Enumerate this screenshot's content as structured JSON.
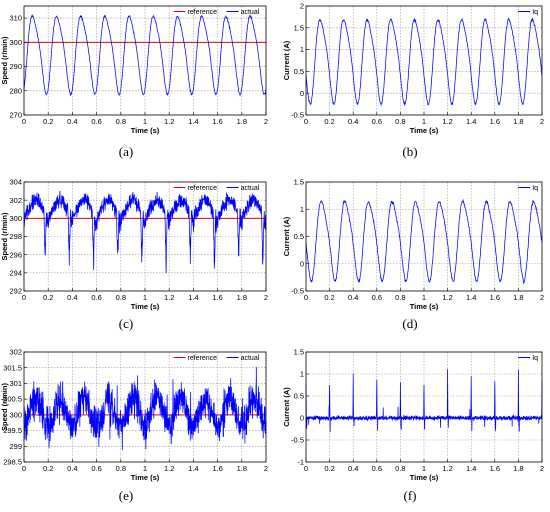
{
  "chart_data": [
    {
      "type": "line",
      "caption": "(a)",
      "xlabel": "Time (s)",
      "ylabel": "Speed (r/min)",
      "xlim": [
        0,
        2
      ],
      "ylim": [
        270,
        315
      ],
      "xticks": [
        0,
        0.2,
        0.4,
        0.6,
        0.8,
        1,
        1.2,
        1.4,
        1.6,
        1.8,
        2
      ],
      "xtick_labels": [
        "0",
        "0.2",
        "0.4",
        "0.6",
        "0.8",
        "1",
        "1.2",
        "1.4",
        "1.6",
        "1.8",
        "2"
      ],
      "yticks": [
        270,
        280,
        290,
        300,
        310
      ],
      "ytick_labels": [
        "270",
        "280",
        "290",
        "300",
        "310"
      ],
      "grid": true,
      "legend_position": "top-right",
      "series": [
        {
          "name": "reference",
          "color": "#e00000",
          "waveform": "constant",
          "value": 300
        },
        {
          "name": "actual",
          "color": "#0000ff",
          "waveform": "periodic",
          "period_s": 0.2,
          "phase_s": 0.03,
          "mean": 296,
          "amplitude": 17,
          "noise": 0.5
        }
      ]
    },
    {
      "type": "line",
      "caption": "(b)",
      "xlabel": "Time (s)",
      "ylabel": "Current (A)",
      "xlim": [
        0,
        2
      ],
      "ylim": [
        -0.5,
        2
      ],
      "xticks": [
        0,
        0.2,
        0.4,
        0.6,
        0.8,
        1,
        1.2,
        1.4,
        1.6,
        1.8,
        2
      ],
      "xtick_labels": [
        "0",
        "0.2",
        "0.4",
        "0.6",
        "0.8",
        "1",
        "1.2",
        "1.4",
        "1.6",
        "1.8",
        "2"
      ],
      "yticks": [
        -0.5,
        0,
        0.5,
        1,
        1.5,
        2
      ],
      "ytick_labels": [
        "-0.5",
        "0",
        "0.5",
        "1",
        "1.5",
        "2"
      ],
      "grid": true,
      "legend_position": "top-right",
      "series": [
        {
          "name": "Iq",
          "color": "#0000ff",
          "waveform": "periodic",
          "period_s": 0.2,
          "phase_s": 0.08,
          "mean": 0.8,
          "amplitude": 1.02,
          "noise": 0.03
        }
      ]
    },
    {
      "type": "line",
      "caption": "(c)",
      "xlabel": "Time (s)",
      "ylabel": "Speed (r/min)",
      "xlim": [
        0,
        2
      ],
      "ylim": [
        292,
        304
      ],
      "xticks": [
        0,
        0.2,
        0.4,
        0.6,
        0.8,
        1,
        1.2,
        1.4,
        1.6,
        1.8,
        2
      ],
      "xtick_labels": [
        "0",
        "0.2",
        "0.4",
        "0.6",
        "0.8",
        "1",
        "1.2",
        "1.4",
        "1.6",
        "1.8",
        "2"
      ],
      "yticks": [
        292,
        294,
        296,
        298,
        300,
        302,
        304
      ],
      "ytick_labels": [
        "292",
        "294",
        "296",
        "298",
        "300",
        "302",
        "304"
      ],
      "grid": true,
      "legend_position": "top-right",
      "series": [
        {
          "name": "reference",
          "color": "#e00000",
          "waveform": "constant",
          "value": 300
        },
        {
          "name": "actual",
          "color": "#0000ff",
          "waveform": "spiky",
          "period_s": 0.2,
          "phase_s": 0.05,
          "mean": 301.2,
          "amplitude": 1.4,
          "noise": 0.8,
          "spike_depth": 7
        }
      ]
    },
    {
      "type": "line",
      "caption": "(d)",
      "xlabel": "Time (s)",
      "ylabel": "Current (A)",
      "xlim": [
        0,
        2
      ],
      "ylim": [
        -0.5,
        1.5
      ],
      "xticks": [
        0,
        0.2,
        0.4,
        0.6,
        0.8,
        1,
        1.2,
        1.4,
        1.6,
        1.8,
        2
      ],
      "xtick_labels": [
        "0",
        "0.2",
        "0.4",
        "0.6",
        "0.8",
        "1",
        "1.2",
        "1.4",
        "1.6",
        "1.8",
        "2"
      ],
      "yticks": [
        -0.5,
        0,
        0.5,
        1,
        1.5
      ],
      "ytick_labels": [
        "-0.5",
        "0",
        "0.5",
        "1",
        "1.5"
      ],
      "grid": true,
      "legend_position": "top-right",
      "series": [
        {
          "name": "Iq",
          "color": "#0000ff",
          "waveform": "periodic",
          "period_s": 0.2,
          "phase_s": 0.09,
          "mean": 0.47,
          "amplitude": 0.77,
          "noise": 0.03
        }
      ]
    },
    {
      "type": "line",
      "caption": "(e)",
      "xlabel": "Time (s)",
      "ylabel": "Speed (r/min)",
      "xlim": [
        0,
        2
      ],
      "ylim": [
        298.5,
        302
      ],
      "xticks": [
        0,
        0.2,
        0.4,
        0.6,
        0.8,
        1,
        1.2,
        1.4,
        1.6,
        1.8,
        2
      ],
      "xtick_labels": [
        "0",
        "0.2",
        "0.4",
        "0.6",
        "0.8",
        "1",
        "1.2",
        "1.4",
        "1.6",
        "1.8",
        "2"
      ],
      "yticks": [
        298.5,
        299,
        299.5,
        300,
        300.5,
        301,
        301.5,
        302
      ],
      "ytick_labels": [
        "298.5",
        "299",
        "299.5",
        "300",
        "300.5",
        "301",
        "301.5",
        "302"
      ],
      "grid": true,
      "legend_position": "top-right",
      "series": [
        {
          "name": "reference",
          "color": "#e00000",
          "waveform": "constant",
          "value": 300
        },
        {
          "name": "actual",
          "color": "#0000ff",
          "waveform": "noisy",
          "period_s": 0.2,
          "phase_s": 0.05,
          "mean": 300.1,
          "amplitude": 0.45,
          "noise": 0.6
        }
      ]
    },
    {
      "type": "line",
      "caption": "(f)",
      "xlabel": "Time (s)",
      "ylabel": "Current (A)",
      "xlim": [
        0,
        2
      ],
      "ylim": [
        -1,
        1.5
      ],
      "xticks": [
        0,
        0.2,
        0.4,
        0.6,
        0.8,
        1,
        1.2,
        1.4,
        1.6,
        1.8,
        2
      ],
      "xtick_labels": [
        "0",
        "0.2",
        "0.4",
        "0.6",
        "0.8",
        "1",
        "1.2",
        "1.4",
        "1.6",
        "1.8",
        "2"
      ],
      "yticks": [
        -1,
        -0.5,
        0,
        0.5,
        1,
        1.5
      ],
      "ytick_labels": [
        "-1",
        "-0.5",
        "0",
        "0.5",
        "1",
        "1.5"
      ],
      "grid": true,
      "legend_position": "top-right",
      "series": [
        {
          "name": "Iq",
          "color": "#0000ff",
          "waveform": "pulses",
          "period_s": 0.2,
          "phase_s": 0.1,
          "mean": 0.0,
          "amplitude": 1.0,
          "noise": 0.05
        }
      ]
    }
  ]
}
